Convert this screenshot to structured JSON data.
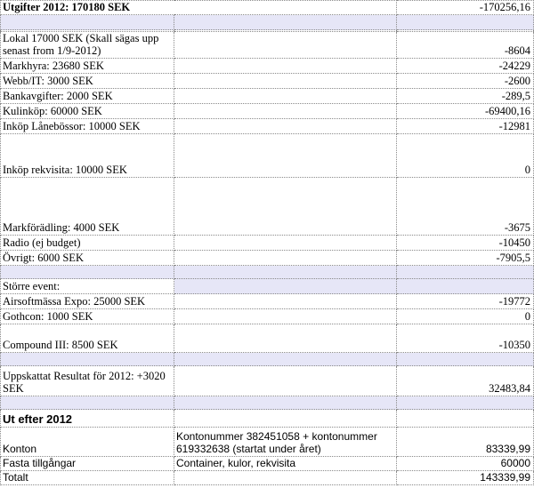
{
  "header": {
    "label": "Utgifter 2012: 170180 SEK",
    "value": "-170256,16"
  },
  "expenses": [
    {
      "label": "Lokal 17000 SEK (Skall sägas upp senast from 1/9-2012)",
      "value": "-8604"
    },
    {
      "label": "Markhyra: 23680 SEK",
      "value": "-24229"
    },
    {
      "label": "Webb/IT: 3000 SEK",
      "value": "-2600"
    },
    {
      "label": "Bankavgifter: 2000 SEK",
      "value": "-289,5"
    },
    {
      "label": "Kulinköp: 60000 SEK",
      "value": "-69400,16"
    },
    {
      "label": "Inköp Lånebössor: 10000 SEK",
      "value": "-12981"
    },
    {
      "label": "Inköp rekvisita: 10000 SEK",
      "value": "0"
    },
    {
      "label": "Markförädling: 4000 SEK",
      "value": "-3675"
    },
    {
      "label": "Radio (ej budget)",
      "value": "-10450"
    },
    {
      "label": "Övrigt: 6000 SEK",
      "value": "-7905,5"
    }
  ],
  "events_header": "Större event:",
  "events": [
    {
      "label": "Airsoftmässa Expo: 25000 SEK",
      "value": "-19772"
    },
    {
      "label": "Gothcon: 1000 SEK",
      "value": "0"
    },
    {
      "label": "Compound III: 8500 SEK",
      "value": "-10350"
    }
  ],
  "result": {
    "label": "Uppskattat Resultat för 2012: +3020 SEK",
    "value": "32483,84"
  },
  "out_section": {
    "title": "Ut efter 2012",
    "rows": [
      {
        "label": "Konton",
        "desc": "Kontonummer 382451058 + kontonummer 619332638 (startat under året)",
        "value": "83339,99"
      },
      {
        "label": "Fasta tillgångar",
        "desc": "Container, kulor, rekvisita",
        "value": "60000"
      },
      {
        "label": "Totalt",
        "desc": "",
        "value": "143339,99"
      }
    ]
  },
  "colors": {
    "band": "#e6e6f7",
    "grid": "#8a8a8a"
  }
}
